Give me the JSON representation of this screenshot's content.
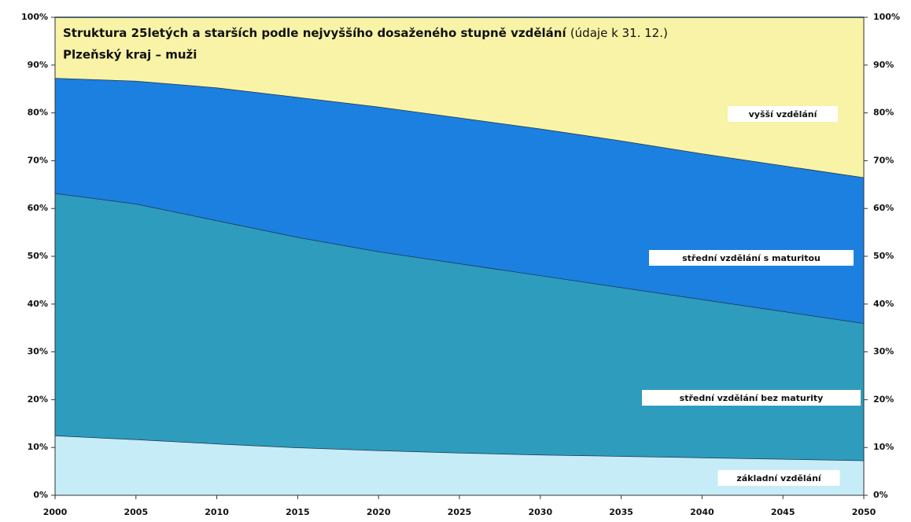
{
  "chart_data": {
    "type": "area",
    "stacked": true,
    "title": "Struktura 25letých a starších podle nejvyššího dosaženého stupně vzdělání",
    "title_note": "(údaje k 31. 12.)",
    "subtitle": "Plzeňský kraj – muži",
    "x": [
      2000,
      2005,
      2010,
      2015,
      2020,
      2025,
      2030,
      2035,
      2040,
      2045,
      2050
    ],
    "xlim": [
      2000,
      2050
    ],
    "xticks": [
      2000,
      2005,
      2010,
      2015,
      2020,
      2025,
      2030,
      2035,
      2040,
      2045,
      2050
    ],
    "ylim": [
      0,
      100
    ],
    "yticks": [
      {
        "value": 0,
        "label": "0%"
      },
      {
        "value": 10,
        "label": "10%"
      },
      {
        "value": 20,
        "label": "20%"
      },
      {
        "value": 30,
        "label": "30%"
      },
      {
        "value": 40,
        "label": "40%"
      },
      {
        "value": 50,
        "label": "50%"
      },
      {
        "value": 60,
        "label": "60%"
      },
      {
        "value": 70,
        "label": "70%"
      },
      {
        "value": 80,
        "label": "80%"
      },
      {
        "value": 90,
        "label": "90%"
      },
      {
        "value": 100,
        "label": "100%"
      }
    ],
    "series": [
      {
        "name": "základní vzdělání",
        "color": "#c6ecf7",
        "values": [
          12.5,
          11.7,
          10.8,
          10.0,
          9.4,
          8.9,
          8.5,
          8.2,
          7.9,
          7.6,
          7.3
        ]
      },
      {
        "name": "střední vzdělání bez maturity",
        "color": "#2e9cbd",
        "values": [
          50.7,
          49.3,
          46.7,
          44.0,
          41.6,
          39.6,
          37.5,
          35.3,
          33.1,
          30.9,
          28.7
        ]
      },
      {
        "name": "střední vzdělání s maturitou",
        "color": "#1b80e0",
        "values": [
          24.1,
          25.7,
          27.8,
          29.3,
          30.3,
          30.5,
          30.7,
          30.7,
          30.5,
          30.5,
          30.5
        ]
      },
      {
        "name": "vyšší vzdělání",
        "color": "#f8f3a6",
        "values": [
          12.7,
          13.3,
          14.7,
          16.7,
          18.7,
          21.0,
          23.3,
          25.8,
          28.5,
          31.0,
          33.5
        ]
      }
    ]
  }
}
